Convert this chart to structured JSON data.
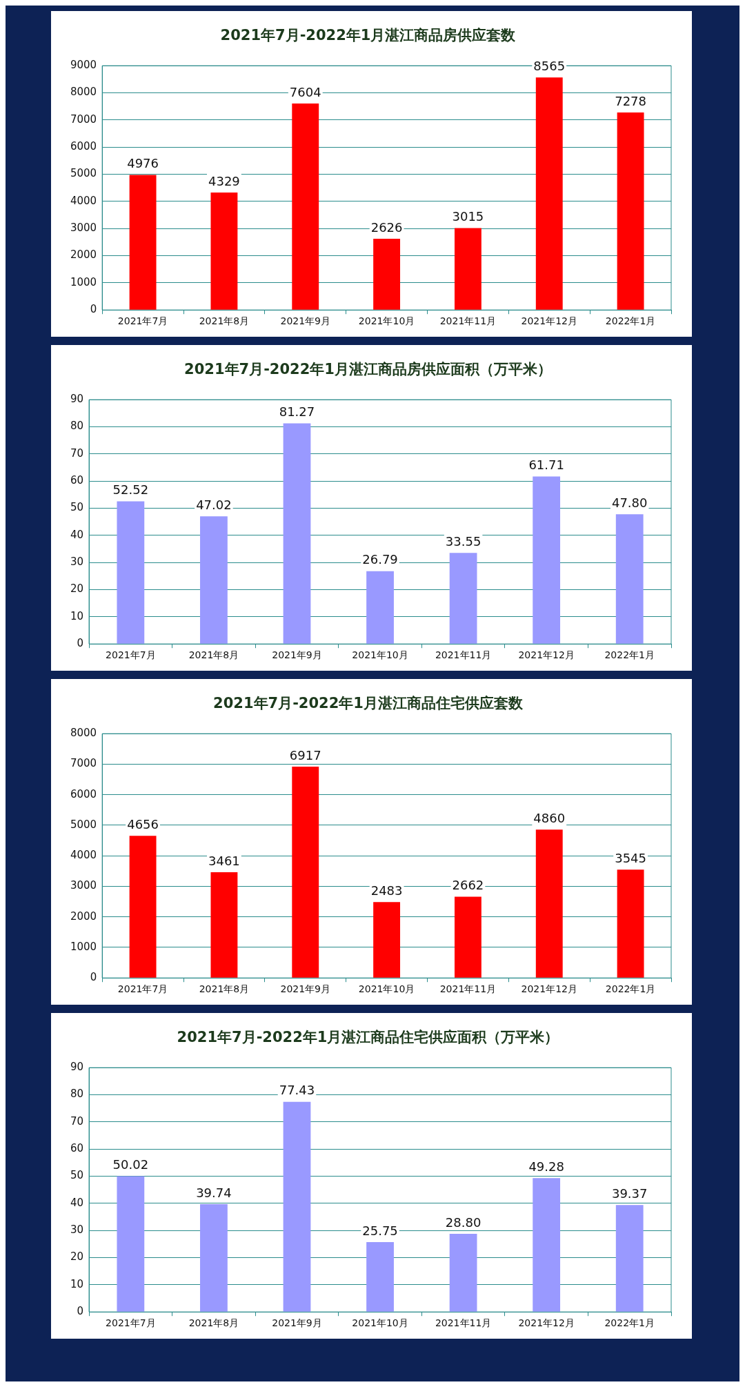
{
  "chart_data": [
    {
      "type": "bar",
      "title": "2021年7月-2022年1月湛江商品房供应套数",
      "categories": [
        "2021年7月",
        "2021年8月",
        "2021年9月",
        "2021年10月",
        "2021年11月",
        "2021年12月",
        "2022年1月"
      ],
      "values": [
        4976,
        4329,
        7604,
        2626,
        3015,
        8565,
        7278
      ],
      "color": "#ff0000",
      "ylim": [
        0,
        9000
      ],
      "yticks": [
        0,
        1000,
        2000,
        3000,
        4000,
        5000,
        6000,
        7000,
        8000,
        9000
      ],
      "grid": "y",
      "data_labels": true
    },
    {
      "type": "bar",
      "title": "2021年7月-2022年1月湛江商品房供应面积（万平米）",
      "categories": [
        "2021年7月",
        "2021年8月",
        "2021年9月",
        "2021年10月",
        "2021年11月",
        "2021年12月",
        "2022年1月"
      ],
      "values": [
        52.52,
        47.02,
        81.27,
        26.79,
        33.55,
        61.71,
        47.8
      ],
      "value_labels": [
        "52.52",
        "47.02",
        "81.27",
        "26.79",
        "33.55",
        "61.71",
        "47.80"
      ],
      "color": "#9999ff",
      "ylim": [
        0,
        90
      ],
      "yticks": [
        0,
        10,
        20,
        30,
        40,
        50,
        60,
        70,
        80,
        90
      ],
      "grid": "y"
    },
    {
      "type": "bar",
      "title": "2021年7月-2022年1月湛江商品住宅供应套数",
      "categories": [
        "2021年7月",
        "2021年8月",
        "2021年9月",
        "2021年10月",
        "2021年11月",
        "2021年12月",
        "2022年1月"
      ],
      "values": [
        4656,
        3461,
        6917,
        2483,
        2662,
        4860,
        3545
      ],
      "color": "#ff0000",
      "ylim": [
        0,
        8000
      ],
      "yticks": [
        0,
        1000,
        2000,
        3000,
        4000,
        5000,
        6000,
        7000,
        8000
      ],
      "grid": "y",
      "data_labels": true
    },
    {
      "type": "bar",
      "title": "2021年7月-2022年1月湛江商品住宅供应面积（万平米）",
      "categories": [
        "2021年7月",
        "2021年8月",
        "2021年9月",
        "2021年10月",
        "2021年11月",
        "2021年12月",
        "2022年1月"
      ],
      "values": [
        50.02,
        39.74,
        77.43,
        25.75,
        28.8,
        49.28,
        39.37
      ],
      "value_labels": [
        "50.02",
        "39.74",
        "77.43",
        "25.75",
        "28.80",
        "49.28",
        "39.37"
      ],
      "color": "#9999ff",
      "ylim": [
        0,
        90
      ],
      "yticks": [
        0,
        10,
        20,
        30,
        40,
        50,
        60,
        70,
        80,
        90
      ],
      "grid": "y"
    }
  ]
}
